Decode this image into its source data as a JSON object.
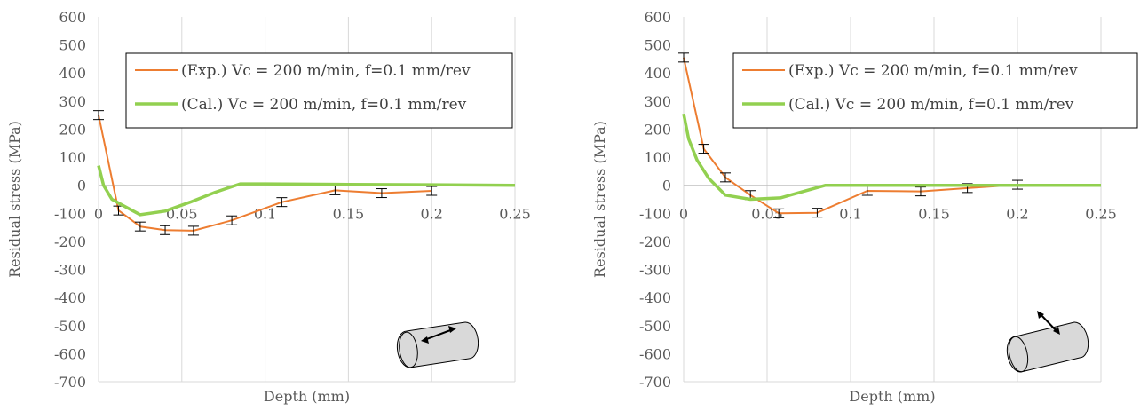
{
  "chart_data": [
    {
      "type": "line",
      "title": "",
      "xlabel": "Depth (mm)",
      "ylabel": "Residual stress  (MPa)",
      "xlim": [
        0,
        0.25
      ],
      "ylim": [
        -700,
        600
      ],
      "xticks": [
        "0",
        "0.05",
        "0.1",
        "0.15",
        "0.2",
        "0.25"
      ],
      "yticks": [
        "600",
        "500",
        "400",
        "300",
        "200",
        "100",
        "0",
        "-100",
        "-200",
        "-300",
        "-400",
        "-500",
        "-600",
        "-700"
      ],
      "grid": true,
      "legend_position": "top-right",
      "icon": "cylinder-axial-arrow-icon",
      "series": [
        {
          "name": "(Exp.) Vc = 200 m/min, f=0.1 mm/rev",
          "color": "#ED7D31",
          "error_bars": true,
          "points": [
            [
              0,
              250
            ],
            [
              0.012,
              -90
            ],
            [
              0.025,
              -147
            ],
            [
              0.04,
              -160
            ],
            [
              0.057,
              -162
            ],
            [
              0.08,
              -125
            ],
            [
              0.11,
              -60
            ],
            [
              0.142,
              -18
            ],
            [
              0.17,
              -28
            ],
            [
              0.2,
              -20
            ]
          ]
        },
        {
          "name": "(Cal.) Vc = 200 m/min, f=0.1 mm/rev",
          "color": "#92D050",
          "error_bars": false,
          "points": [
            [
              0,
              70
            ],
            [
              0.003,
              0
            ],
            [
              0.008,
              -50
            ],
            [
              0.014,
              -70
            ],
            [
              0.025,
              -105
            ],
            [
              0.04,
              -92
            ],
            [
              0.055,
              -60
            ],
            [
              0.07,
              -25
            ],
            [
              0.085,
              5
            ],
            [
              0.1,
              5
            ],
            [
              0.15,
              3
            ],
            [
              0.2,
              2
            ],
            [
              0.25,
              0
            ]
          ]
        }
      ]
    },
    {
      "type": "line",
      "title": "",
      "xlabel": "Depth (mm)",
      "ylabel": "Residual stress  (MPa)",
      "xlim": [
        0,
        0.25
      ],
      "ylim": [
        -700,
        600
      ],
      "xticks": [
        "0",
        "0.05",
        "0.1",
        "0.15",
        "0.2",
        "0.25"
      ],
      "yticks": [
        "600",
        "500",
        "400",
        "300",
        "200",
        "100",
        "0",
        "-100",
        "-200",
        "-300",
        "-400",
        "-500",
        "-600",
        "-700"
      ],
      "grid": true,
      "legend_position": "top-right",
      "icon": "cylinder-hoop-arrow-icon",
      "series": [
        {
          "name": "(Exp.) Vc = 200 m/min, f=0.1 mm/rev",
          "color": "#ED7D31",
          "error_bars": true,
          "points": [
            [
              0,
              455
            ],
            [
              0.012,
              130
            ],
            [
              0.025,
              28
            ],
            [
              0.04,
              -35
            ],
            [
              0.057,
              -100
            ],
            [
              0.08,
              -98
            ],
            [
              0.11,
              -20
            ],
            [
              0.142,
              -22
            ],
            [
              0.17,
              -10
            ],
            [
              0.2,
              2
            ]
          ]
        },
        {
          "name": "(Cal.) Vc = 200 m/min, f=0.1 mm/rev",
          "color": "#92D050",
          "error_bars": false,
          "points": [
            [
              0,
              255
            ],
            [
              0.003,
              165
            ],
            [
              0.008,
              90
            ],
            [
              0.015,
              25
            ],
            [
              0.025,
              -35
            ],
            [
              0.04,
              -50
            ],
            [
              0.058,
              -45
            ],
            [
              0.085,
              0
            ],
            [
              0.1,
              0
            ],
            [
              0.15,
              0
            ],
            [
              0.2,
              0
            ],
            [
              0.25,
              0
            ]
          ]
        }
      ]
    }
  ]
}
